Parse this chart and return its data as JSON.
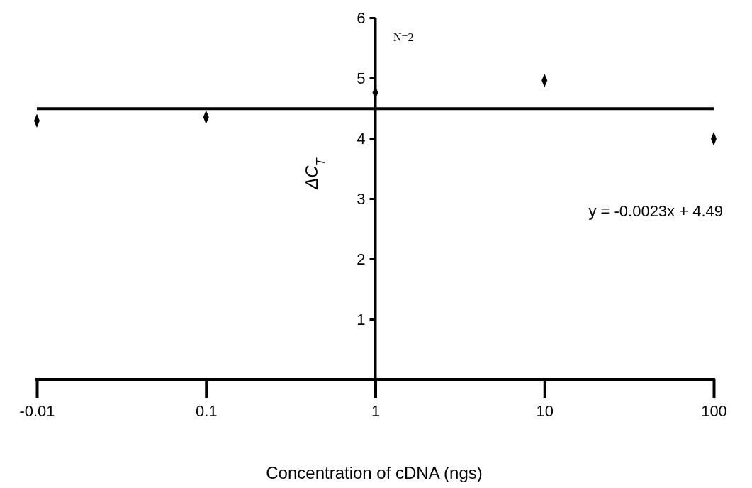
{
  "chart_data": {
    "type": "scatter",
    "xlabel": "Concentration of cDNA (ngs)",
    "ylabel": "ΔC$_{T}$",
    "categories": [
      "-0.01",
      "0.1",
      "1",
      "10",
      "100"
    ],
    "series": [
      {
        "color": "#000000",
        "marker": "diamond",
        "values": [
          4.29,
          4.35,
          4.76,
          4.96,
          3.99
        ]
      },
      {
        "type": "line",
        "color": "#000000",
        "marker": "none",
        "line_style": "solid",
        "values": [
          4.49,
          4.49,
          4.49,
          4.49,
          4.49
        ]
      }
    ],
    "ylim": [
      0,
      6
    ],
    "yticks": [
      1,
      2,
      3,
      4,
      5,
      6
    ],
    "grid": false,
    "ref_lines": [
      {
        "axis": "x",
        "value": "1"
      }
    ],
    "annotations": [
      "N=2",
      "y = -0.0023x + 4.49"
    ]
  }
}
